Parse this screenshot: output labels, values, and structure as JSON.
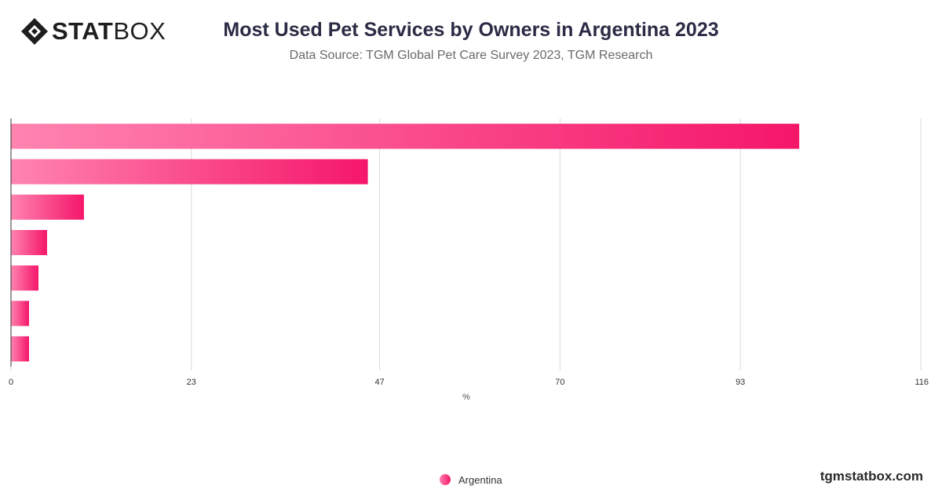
{
  "header": {
    "logo_bold": "STAT",
    "logo_light": "BOX",
    "logo_icon": "statbox-diamond-icon",
    "title": "Most Used Pet Services by Owners in Argentina 2023",
    "subtitle": "Data Source: TGM Global Pet Care Survey 2023, TGM Research"
  },
  "footer": {
    "url": "tgmstatbox.com"
  },
  "colors": {
    "bar_start": "#ff84b0",
    "bar_end": "#f5166a",
    "grid": "#d9d9d9",
    "axis": "#333333",
    "tick_text": "#333333"
  },
  "chart_data": {
    "type": "bar",
    "orientation": "horizontal",
    "categories": [
      "",
      "",
      "",
      "",
      "",
      "",
      ""
    ],
    "series": [
      {
        "name": "Argentina",
        "values": [
          100.5,
          45.5,
          9.3,
          4.6,
          3.5,
          2.3,
          2.3
        ]
      }
    ],
    "xlabel": "%",
    "xlim": [
      0,
      116
    ],
    "xticks": [
      0,
      23,
      47,
      70,
      93,
      116
    ],
    "grid": true,
    "legend_position": "bottom-center"
  }
}
